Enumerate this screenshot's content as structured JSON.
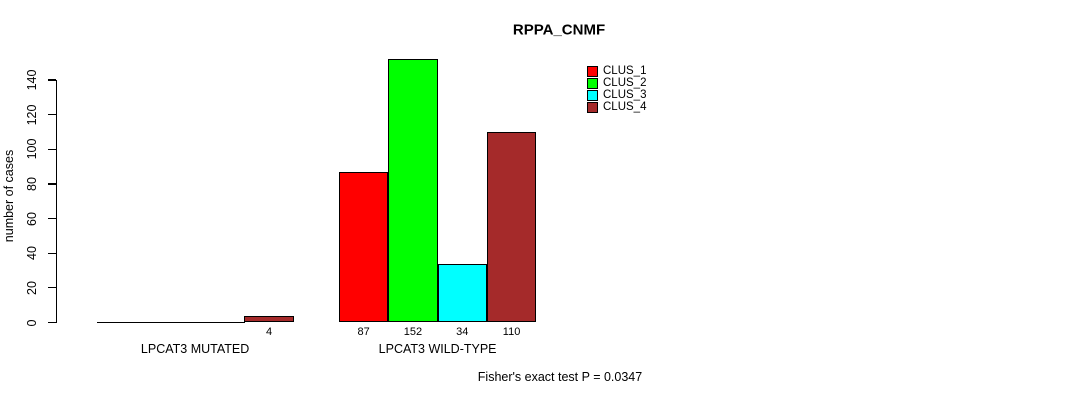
{
  "chart_data": {
    "type": "bar",
    "grouped": true,
    "title": "RPPA_CNMF",
    "ylabel": "number of cases",
    "xlabel": "",
    "categories": [
      "LPCAT3 MUTATED",
      "LPCAT3 WILD-TYPE"
    ],
    "series": [
      {
        "name": "CLUS_1",
        "color": "#FF0000",
        "values": [
          0,
          87
        ]
      },
      {
        "name": "CLUS_2",
        "color": "#00FF00",
        "values": [
          0,
          152
        ]
      },
      {
        "name": "CLUS_3",
        "color": "#00FFFF",
        "values": [
          0,
          34
        ]
      },
      {
        "name": "CLUS_4",
        "color": "#A52A2A",
        "values": [
          4,
          110
        ]
      }
    ],
    "bar_labels": [
      [
        "",
        "",
        "",
        "4"
      ],
      [
        "87",
        "152",
        "34",
        "110"
      ]
    ],
    "yticks": [
      0,
      20,
      40,
      60,
      80,
      100,
      120,
      140
    ],
    "ylim": [
      0,
      152
    ],
    "grid": false,
    "legend_position": "top-right",
    "annotation": "Fisher's exact test P = 0.0347"
  },
  "colors": {
    "background": "#FFFFFF",
    "axis": "#000000",
    "bar_border": "#000000"
  }
}
